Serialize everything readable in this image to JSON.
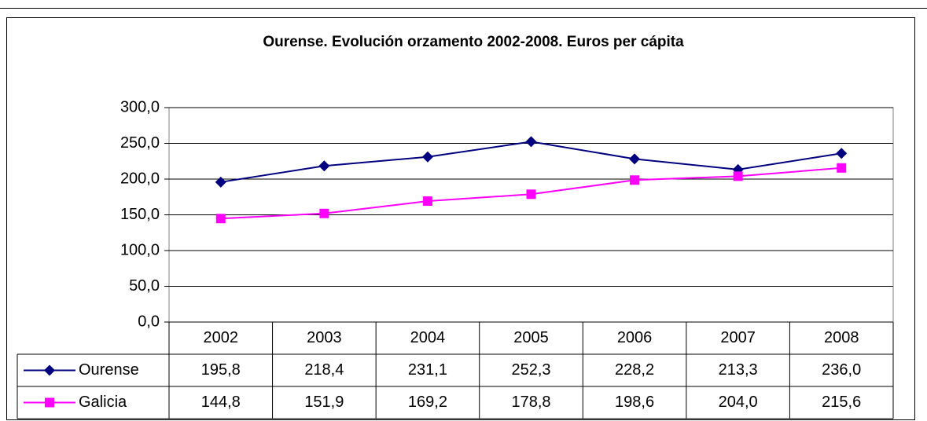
{
  "chart_data": {
    "type": "line",
    "title": "Ourense. Evolución orzamento 2002-2008. Euros per cápita",
    "categories": [
      "2002",
      "2003",
      "2004",
      "2005",
      "2006",
      "2007",
      "2008"
    ],
    "series": [
      {
        "name": "Ourense",
        "color": "#000080",
        "marker": "diamond",
        "values": [
          195.8,
          218.4,
          231.1,
          252.3,
          228.2,
          213.3,
          236.0
        ],
        "value_labels": [
          "195,8",
          "218,4",
          "231,1",
          "252,3",
          "228,2",
          "213,3",
          "236,0"
        ]
      },
      {
        "name": "Galicia",
        "color": "#ff00ff",
        "marker": "square",
        "values": [
          144.8,
          151.9,
          169.2,
          178.8,
          198.6,
          204.0,
          215.6
        ],
        "value_labels": [
          "144,8",
          "151,9",
          "169,2",
          "178,8",
          "198,6",
          "204,0",
          "215,6"
        ]
      }
    ],
    "ylim": [
      0,
      300
    ],
    "yticks": [
      {
        "value": 0,
        "label": "0,0"
      },
      {
        "value": 50,
        "label": "50,0"
      },
      {
        "value": 100,
        "label": "100,0"
      },
      {
        "value": 150,
        "label": "150,0"
      },
      {
        "value": 200,
        "label": "200,0"
      },
      {
        "value": 250,
        "label": "250,0"
      },
      {
        "value": 300,
        "label": "300,0"
      }
    ],
    "grid": true
  }
}
